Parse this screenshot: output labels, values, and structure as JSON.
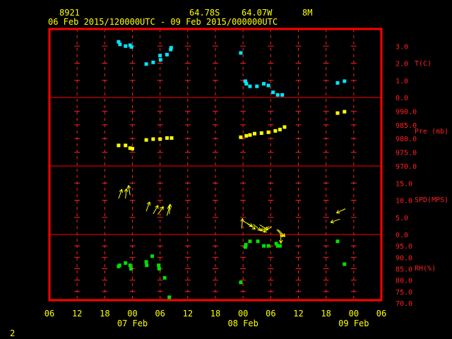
{
  "header": {
    "station_id": "8921",
    "latitude": "64.78S",
    "longitude": "64.07W",
    "elevation": "8M",
    "time_range": "06 Feb 2015/120000UTC - 09 Feb 2015/000000UTC"
  },
  "footer": {
    "page_number": "2"
  },
  "colors": {
    "background": "#000000",
    "frame": "#ff0000",
    "grid": "#ff2020",
    "text": "#ffff00",
    "temperature": "#00e5ff",
    "pressure": "#ffff00",
    "wind": "#ffff00",
    "humidity": "#00e000"
  },
  "chart_data": {
    "type": "scatter",
    "x_unit": "hours since 06 Feb 2015 00 UTC",
    "x_ticks": [
      6,
      12,
      18,
      24,
      30,
      36,
      42,
      48,
      54,
      60,
      66,
      72,
      78
    ],
    "x_tick_labels": [
      "06",
      "12",
      "18",
      "00",
      "06",
      "12",
      "18",
      "00",
      "06",
      "12",
      "18",
      "00",
      "06"
    ],
    "date_labels": [
      {
        "x": 24,
        "label": "07 Feb"
      },
      {
        "x": 48,
        "label": "08 Feb"
      },
      {
        "x": 72,
        "label": "09 Feb"
      }
    ],
    "xlim": [
      6,
      78
    ],
    "grid": true,
    "panels": [
      {
        "key": "temperature",
        "label": "T(C)",
        "ylim": [
          0,
          4
        ],
        "ticks": [
          0,
          1,
          2,
          3
        ],
        "tick_labels": [
          "0.0",
          "1.0",
          "2.0",
          "3.0"
        ],
        "series": [
          {
            "values": [
              [
                21,
                3.25
              ],
              [
                21.3,
                3.1
              ],
              [
                22.5,
                3.0
              ],
              [
                23.5,
                3.05
              ],
              [
                23.8,
                2.95
              ],
              [
                27,
                1.95
              ],
              [
                28.5,
                2.05
              ],
              [
                30,
                2.45
              ],
              [
                30.1,
                2.2
              ],
              [
                31.5,
                2.5
              ],
              [
                32.3,
                2.8
              ],
              [
                32.4,
                2.9
              ],
              [
                47.5,
                2.6
              ],
              [
                48.5,
                0.95
              ],
              [
                48.7,
                0.8
              ],
              [
                49.5,
                0.65
              ],
              [
                51,
                0.65
              ],
              [
                52.5,
                0.8
              ],
              [
                53.5,
                0.7
              ],
              [
                54.5,
                0.3
              ],
              [
                55.5,
                0.15
              ],
              [
                56.5,
                0.15
              ],
              [
                68.5,
                0.85
              ],
              [
                70,
                0.95
              ]
            ]
          }
        ]
      },
      {
        "key": "pressure",
        "label": "Pre (mb)",
        "ylim": [
          970,
          995
        ],
        "ticks": [
          970,
          975,
          980,
          985,
          990
        ],
        "tick_labels": [
          "970.0",
          "975.0",
          "980.0",
          "985.0",
          "990.0"
        ],
        "series": [
          {
            "values": [
              [
                21,
                977.5
              ],
              [
                22.5,
                977.5
              ],
              [
                23.5,
                976.5
              ],
              [
                24,
                976.3
              ],
              [
                27,
                979.5
              ],
              [
                28.5,
                979.8
              ],
              [
                30,
                979.8
              ],
              [
                31.5,
                980.2
              ],
              [
                32.5,
                980.2
              ],
              [
                47.5,
                980.5
              ],
              [
                48.7,
                981
              ],
              [
                49.5,
                981.3
              ],
              [
                50.5,
                981.8
              ],
              [
                52,
                982
              ],
              [
                53.5,
                982.3
              ],
              [
                55,
                982.8
              ],
              [
                56,
                983.3
              ],
              [
                57,
                984.2
              ],
              [
                68.5,
                989.3
              ],
              [
                70,
                989.8
              ]
            ]
          }
        ]
      },
      {
        "key": "wind",
        "label": "SPD(MPS)",
        "ylim": [
          0,
          20
        ],
        "ticks": [
          0,
          5,
          10,
          15
        ],
        "tick_labels": [
          "0.0",
          "5.0",
          "10.0",
          "15.0"
        ],
        "series": [
          {
            "values": [
              [
                21,
                10.5,
                200
              ],
              [
                22.5,
                10.5,
                185
              ],
              [
                23.5,
                11.5,
                170
              ],
              [
                27,
                6.8,
                200
              ],
              [
                28.5,
                6.0,
                210
              ],
              [
                29.5,
                5.8,
                215
              ],
              [
                31.5,
                5.5,
                195
              ],
              [
                32,
                6.0,
                185
              ],
              [
                47.7,
                1.8,
                185
              ],
              [
                48.2,
                3.8,
                300
              ],
              [
                48.9,
                3.2,
                305
              ],
              [
                50.2,
                3.0,
                310
              ],
              [
                51.6,
                2.8,
                300
              ],
              [
                53.7,
                2.3,
                65
              ],
              [
                54.2,
                2.3,
                55
              ],
              [
                55.3,
                1.5,
                320
              ],
              [
                55.6,
                1.4,
                315
              ],
              [
                56.2,
                0.3,
                0
              ],
              [
                69,
                4.5,
                70
              ],
              [
                70.2,
                7.5,
                65
              ]
            ]
          }
        ]
      },
      {
        "key": "humidity",
        "label": "RH(%)",
        "ylim": [
          70,
          100
        ],
        "ticks": [
          70,
          75,
          80,
          85,
          90,
          95
        ],
        "tick_labels": [
          "70.0",
          "75.0",
          "80.0",
          "85.0",
          "90.0",
          "95.0"
        ],
        "series": [
          {
            "values": [
              [
                21,
                86
              ],
              [
                21.2,
                86.5
              ],
              [
                22.5,
                87.5
              ],
              [
                23.5,
                86.5
              ],
              [
                23.7,
                85
              ],
              [
                27,
                88
              ],
              [
                27.1,
                86.5
              ],
              [
                28.3,
                90.5
              ],
              [
                29.7,
                86.5
              ],
              [
                29.8,
                85
              ],
              [
                31,
                81
              ],
              [
                32,
                72.5
              ],
              [
                47.5,
                79
              ],
              [
                48.5,
                94.5
              ],
              [
                48.6,
                95.5
              ],
              [
                49.5,
                97
              ],
              [
                51.2,
                97
              ],
              [
                52.5,
                95
              ],
              [
                53.5,
                95
              ],
              [
                55.2,
                96
              ],
              [
                55.5,
                95
              ],
              [
                56,
                95
              ],
              [
                68.5,
                97
              ],
              [
                70,
                87
              ]
            ]
          }
        ]
      }
    ]
  }
}
